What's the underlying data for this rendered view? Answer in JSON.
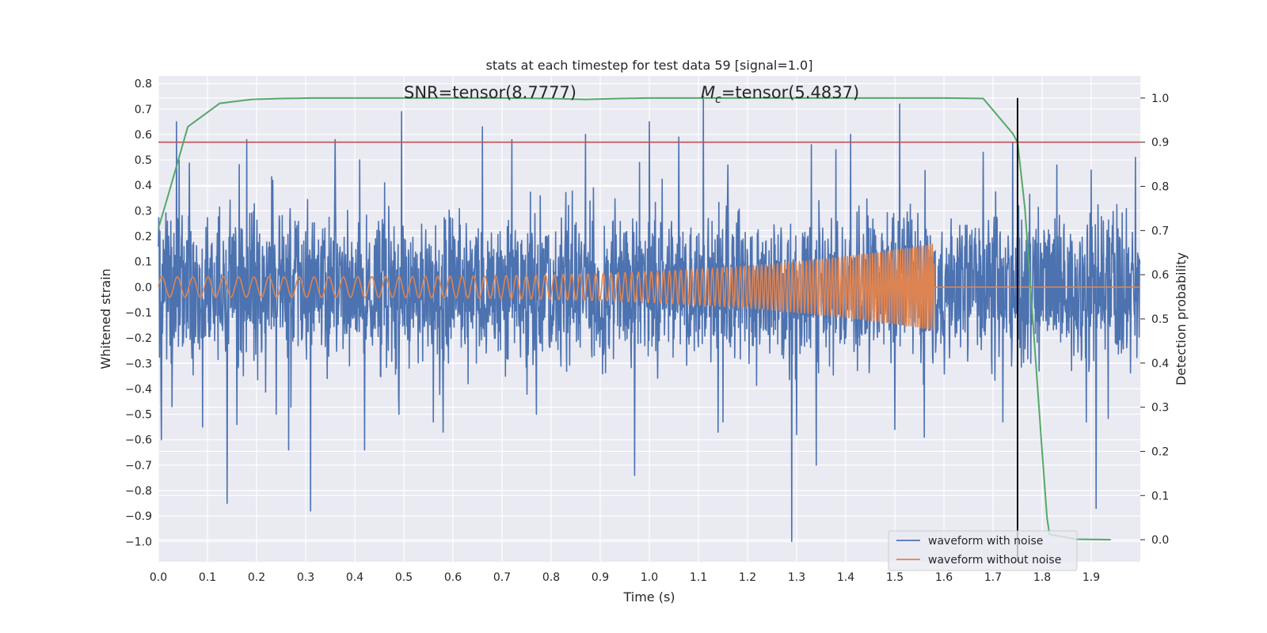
{
  "chart_data": {
    "type": "line",
    "title": "stats at each timestep for test data 59 [signal=1.0]",
    "xlabel": "Time (s)",
    "ylabel": "Whitened strain",
    "y2label": "Detection probability",
    "xlim": [
      0.0,
      2.0
    ],
    "ylim": [
      -1.08,
      0.83
    ],
    "y2lim": [
      -0.05,
      1.05
    ],
    "xticks": [
      "0.0",
      "0.1",
      "0.2",
      "0.3",
      "0.4",
      "0.5",
      "0.6",
      "0.7",
      "0.8",
      "0.9",
      "1.0",
      "1.1",
      "1.2",
      "1.3",
      "1.4",
      "1.5",
      "1.6",
      "1.7",
      "1.8",
      "1.9"
    ],
    "yticks": [
      "0.8",
      "0.7",
      "0.6",
      "0.5",
      "0.4",
      "0.3",
      "0.2",
      "0.1",
      "0.0",
      "−0.1",
      "−0.2",
      "−0.3",
      "−0.4",
      "−0.5",
      "−0.6",
      "−0.7",
      "−0.8",
      "−0.9",
      "−1.0"
    ],
    "y2ticks": [
      "1.0",
      "0.9",
      "0.8",
      "0.7",
      "0.6",
      "0.5",
      "0.4",
      "0.3",
      "0.2",
      "0.1",
      "0.0"
    ],
    "grid": true,
    "legend_position": "lower-right",
    "background_color": "#eaeaf2",
    "annotations": {
      "snr": "SNR=tensor(8.7777)",
      "mc_symbol": "M",
      "mc_subscript": "c",
      "mc_rest": "=tensor(5.4837)"
    },
    "series": [
      {
        "name": "waveform with noise",
        "color": "#4c72b0",
        "axis": "left",
        "description": "noisy whitened strain; mostly within about ±0.45 with spikes",
        "envelope": 0.42,
        "spikes": [
          [
            0.003,
            0.22
          ],
          [
            0.006,
            -0.6
          ],
          [
            0.028,
            -0.47
          ],
          [
            0.037,
            0.65
          ],
          [
            0.042,
            0.5
          ],
          [
            0.09,
            -0.55
          ],
          [
            0.14,
            -0.85
          ],
          [
            0.16,
            -0.54
          ],
          [
            0.18,
            0.58
          ],
          [
            0.24,
            -0.5
          ],
          [
            0.265,
            -0.64
          ],
          [
            0.31,
            -0.88
          ],
          [
            0.36,
            0.58
          ],
          [
            0.41,
            0.5
          ],
          [
            0.42,
            -0.64
          ],
          [
            0.49,
            -0.5
          ],
          [
            0.495,
            0.69
          ],
          [
            0.56,
            -0.53
          ],
          [
            0.58,
            -0.57
          ],
          [
            0.66,
            0.63
          ],
          [
            0.72,
            0.58
          ],
          [
            0.77,
            -0.5
          ],
          [
            0.87,
            0.6
          ],
          [
            0.97,
            -0.74
          ],
          [
            0.98,
            0.49
          ],
          [
            1.0,
            0.65
          ],
          [
            1.06,
            0.59
          ],
          [
            1.11,
            0.75
          ],
          [
            1.14,
            -0.57
          ],
          [
            1.15,
            -0.53
          ],
          [
            1.16,
            0.48
          ],
          [
            1.29,
            -1.0
          ],
          [
            1.3,
            -0.58
          ],
          [
            1.33,
            0.56
          ],
          [
            1.34,
            -0.7
          ],
          [
            1.38,
            0.54
          ],
          [
            1.41,
            0.6
          ],
          [
            1.5,
            -0.56
          ],
          [
            1.51,
            0.72
          ],
          [
            1.56,
            -0.59
          ],
          [
            1.68,
            0.53
          ],
          [
            1.72,
            -0.53
          ],
          [
            1.74,
            0.57
          ],
          [
            1.83,
            0.48
          ],
          [
            1.89,
            -0.53
          ],
          [
            1.9,
            0.46
          ],
          [
            1.91,
            -0.87
          ],
          [
            1.99,
            0.51
          ]
        ]
      },
      {
        "name": "waveform without noise",
        "color": "#dd8452",
        "axis": "left",
        "description": "inspiral chirp; amplitude grows and frequency increases until merger near 1.58 s, then zero",
        "start_amplitude": 0.04,
        "end_amplitude": 0.17,
        "start_frequency_hz": 32,
        "end_frequency_hz": 230,
        "merger_time": 1.58
      },
      {
        "name": "Detection probability",
        "color": "#55a868",
        "axis": "right",
        "x": [
          0.0,
          0.02,
          0.06,
          0.125,
          0.19,
          0.25,
          0.31,
          0.4,
          0.5,
          0.6,
          0.7,
          0.8,
          0.87,
          0.94,
          1.0,
          1.1,
          1.2,
          1.3,
          1.4,
          1.5,
          1.6,
          1.68,
          1.74,
          1.75,
          1.765,
          1.8,
          1.81,
          1.815,
          1.87,
          1.94
        ],
        "y": [
          0.705,
          0.78,
          0.935,
          0.988,
          0.997,
          0.999,
          1.0,
          1.0,
          1.0,
          1.0,
          1.0,
          0.999,
          0.997,
          0.999,
          1.0,
          1.0,
          1.0,
          1.0,
          1.0,
          1.0,
          1.0,
          0.999,
          0.92,
          0.9,
          0.75,
          0.2,
          0.05,
          0.012,
          0.001,
          0.0
        ]
      }
    ],
    "threshold": {
      "color": "#c44e52",
      "y2": 0.9
    },
    "vertical_line": {
      "color": "#000000",
      "x": 1.75,
      "y2_top": 1.0,
      "y2_bottom": -0.05
    }
  }
}
